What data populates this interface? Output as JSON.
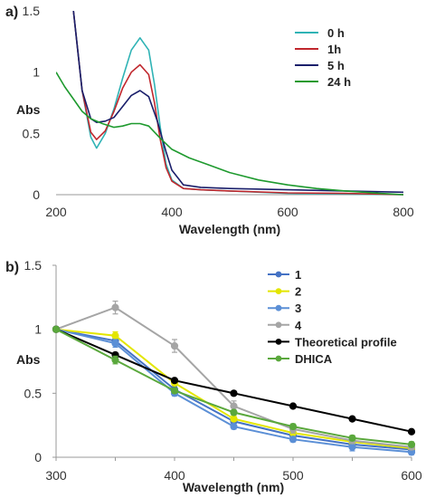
{
  "chart_data": [
    {
      "type": "line",
      "panel_label": "a)",
      "xlabel": "Wavelength (nm)",
      "ylabel": "Abs",
      "xlim": [
        200,
        800
      ],
      "ylim": [
        0,
        1.5
      ],
      "x_ticks": [
        "200",
        "400",
        "600",
        "800"
      ],
      "y_ticks": [
        "0",
        "0.5",
        "1",
        "1.5"
      ],
      "grid": false,
      "legend_position": "top-right",
      "series": [
        {
          "name": "0 h",
          "color": "#2fb3b5",
          "points": [
            [
              230,
              1.5
            ],
            [
              245,
              0.85
            ],
            [
              260,
              0.47
            ],
            [
              270,
              0.38
            ],
            [
              285,
              0.5
            ],
            [
              300,
              0.7
            ],
            [
              315,
              0.95
            ],
            [
              330,
              1.18
            ],
            [
              345,
              1.28
            ],
            [
              360,
              1.18
            ],
            [
              370,
              0.9
            ],
            [
              380,
              0.55
            ],
            [
              390,
              0.25
            ],
            [
              400,
              0.12
            ],
            [
              420,
              0.05
            ],
            [
              450,
              0.04
            ],
            [
              500,
              0.03
            ],
            [
              600,
              0.01
            ],
            [
              700,
              0.005
            ],
            [
              800,
              0.0
            ]
          ]
        },
        {
          "name": "1h",
          "color": "#c0272d",
          "points": [
            [
              230,
              1.5
            ],
            [
              245,
              0.85
            ],
            [
              260,
              0.51
            ],
            [
              270,
              0.45
            ],
            [
              285,
              0.52
            ],
            [
              300,
              0.68
            ],
            [
              315,
              0.87
            ],
            [
              330,
              1.0
            ],
            [
              345,
              1.06
            ],
            [
              360,
              0.98
            ],
            [
              370,
              0.75
            ],
            [
              380,
              0.45
            ],
            [
              390,
              0.22
            ],
            [
              400,
              0.11
            ],
            [
              420,
              0.05
            ],
            [
              450,
              0.04
            ],
            [
              500,
              0.03
            ],
            [
              600,
              0.015
            ],
            [
              700,
              0.01
            ],
            [
              800,
              0.0
            ]
          ]
        },
        {
          "name": "5 h",
          "color": "#1a1f6b",
          "points": [
            [
              230,
              1.5
            ],
            [
              245,
              0.85
            ],
            [
              260,
              0.62
            ],
            [
              270,
              0.59
            ],
            [
              285,
              0.6
            ],
            [
              300,
              0.63
            ],
            [
              315,
              0.72
            ],
            [
              330,
              0.81
            ],
            [
              345,
              0.85
            ],
            [
              360,
              0.8
            ],
            [
              375,
              0.6
            ],
            [
              390,
              0.35
            ],
            [
              400,
              0.2
            ],
            [
              420,
              0.08
            ],
            [
              450,
              0.06
            ],
            [
              500,
              0.05
            ],
            [
              600,
              0.04
            ],
            [
              700,
              0.03
            ],
            [
              800,
              0.02
            ]
          ]
        },
        {
          "name": "24 h",
          "color": "#1e9a2e",
          "points": [
            [
              200,
              1.0
            ],
            [
              215,
              0.88
            ],
            [
              230,
              0.78
            ],
            [
              245,
              0.68
            ],
            [
              260,
              0.62
            ],
            [
              280,
              0.58
            ],
            [
              300,
              0.55
            ],
            [
              315,
              0.56
            ],
            [
              330,
              0.58
            ],
            [
              345,
              0.58
            ],
            [
              360,
              0.56
            ],
            [
              380,
              0.46
            ],
            [
              400,
              0.37
            ],
            [
              430,
              0.3
            ],
            [
              460,
              0.25
            ],
            [
              500,
              0.18
            ],
            [
              550,
              0.12
            ],
            [
              600,
              0.08
            ],
            [
              650,
              0.05
            ],
            [
              700,
              0.03
            ],
            [
              760,
              0.01
            ],
            [
              800,
              0.0
            ]
          ]
        }
      ]
    },
    {
      "type": "line",
      "panel_label": "b)",
      "xlabel": "Wavelength (nm)",
      "ylabel": "Abs",
      "xlim": [
        300,
        600
      ],
      "ylim": [
        0,
        1.5
      ],
      "x_ticks": [
        "300",
        "400",
        "500",
        "600"
      ],
      "y_ticks": [
        "0",
        "0.5",
        "1",
        "1.5"
      ],
      "grid": false,
      "legend_position": "top-right",
      "categories": [
        300,
        350,
        400,
        450,
        500,
        550,
        600
      ],
      "series": [
        {
          "name": "1",
          "color": "#4472c4",
          "values": [
            1.0,
            0.91,
            0.53,
            0.28,
            0.17,
            0.1,
            0.06
          ],
          "errors": [
            0.01,
            0.02,
            0.02,
            0.02,
            0.02,
            0.02,
            0.02
          ]
        },
        {
          "name": "2",
          "color": "#e3e600",
          "values": [
            1.0,
            0.95,
            0.58,
            0.3,
            0.19,
            0.12,
            0.07
          ],
          "errors": [
            0.01,
            0.03,
            0.02,
            0.02,
            0.02,
            0.02,
            0.02
          ]
        },
        {
          "name": "3",
          "color": "#5b8fd6",
          "values": [
            1.0,
            0.89,
            0.5,
            0.24,
            0.14,
            0.08,
            0.04
          ],
          "errors": [
            0.01,
            0.03,
            0.02,
            0.02,
            0.02,
            0.03,
            0.02
          ]
        },
        {
          "name": "4",
          "color": "#a5a5a5",
          "values": [
            1.0,
            1.17,
            0.87,
            0.4,
            0.22,
            0.13,
            0.08
          ],
          "errors": [
            0.02,
            0.05,
            0.05,
            0.04,
            0.03,
            0.02,
            0.02
          ]
        },
        {
          "name": "Theoretical profile",
          "color": "#000000",
          "values": [
            1.0,
            0.8,
            0.6,
            0.5,
            0.4,
            0.3,
            0.2
          ],
          "errors": [
            0,
            0,
            0,
            0,
            0,
            0,
            0
          ]
        },
        {
          "name": "DHICA",
          "color": "#5aa83c",
          "values": [
            1.0,
            0.76,
            0.52,
            0.35,
            0.24,
            0.15,
            0.1
          ],
          "errors": [
            0.01,
            0.03,
            0.02,
            0.02,
            0.02,
            0.02,
            0.02
          ]
        }
      ]
    }
  ]
}
